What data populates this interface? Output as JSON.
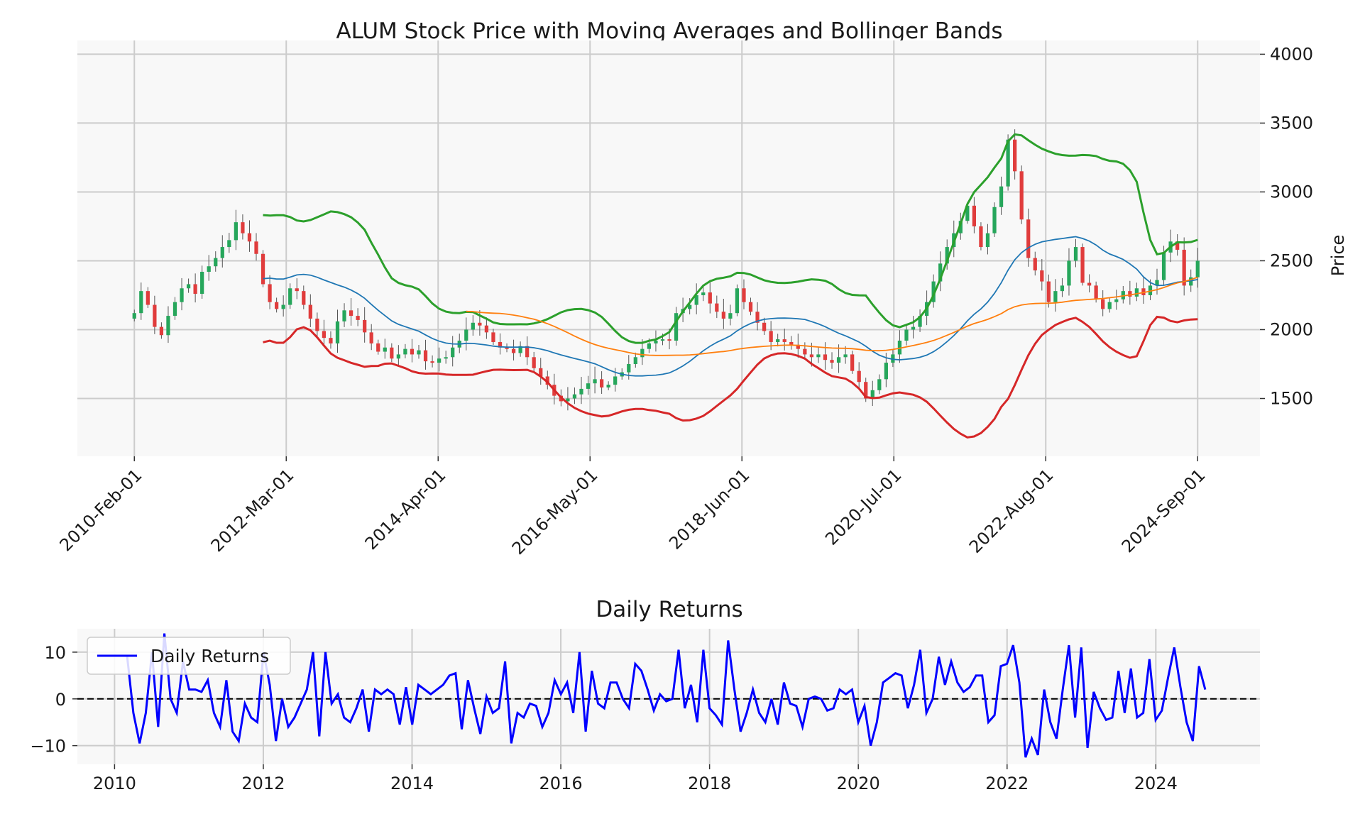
{
  "chart_data": [
    {
      "type": "candlestick",
      "title": "ALUM Stock Price with Moving Averages and Bollinger Bands",
      "ylabel": "Price",
      "xlabel": "",
      "xlim": [
        2009.35,
        2024.92
      ],
      "ylim": [
        1080,
        4100
      ],
      "yticks": [
        1500,
        2000,
        2500,
        3000,
        3500,
        4000
      ],
      "xticks": [
        {
          "x": 2010.1,
          "label": "2010-Feb-01"
        },
        {
          "x": 2012.1,
          "label": "2012-Mar-01"
        },
        {
          "x": 2014.1,
          "label": "2014-Apr-01"
        },
        {
          "x": 2016.1,
          "label": "2016-May-01"
        },
        {
          "x": 2018.1,
          "label": "2018-Jun-01"
        },
        {
          "x": 2020.1,
          "label": "2020-Jul-01"
        },
        {
          "x": 2022.1,
          "label": "2022-Aug-01"
        },
        {
          "x": 2024.1,
          "label": "2024-Sep-01"
        }
      ],
      "grid": true,
      "y_axis_side": "right",
      "colors": {
        "up": "#26a65b",
        "down": "#e03c3c",
        "wick": "#555555",
        "ma_short": "#1f77b4",
        "ma_long": "#ff7f0e",
        "bb_upper": "#2ca02c",
        "bb_lower": "#d62728",
        "panel_bg": "#f8f8f8",
        "grid": "#cccccc"
      },
      "candles_close": [
        2120,
        2280,
        2180,
        2020,
        1960,
        2100,
        2200,
        2300,
        2330,
        2260,
        2420,
        2460,
        2520,
        2600,
        2650,
        2780,
        2700,
        2640,
        2550,
        2330,
        2200,
        2150,
        2180,
        2300,
        2280,
        2180,
        2080,
        1990,
        1940,
        1900,
        2060,
        2140,
        2100,
        2070,
        1980,
        1900,
        1840,
        1870,
        1790,
        1820,
        1860,
        1820,
        1850,
        1770,
        1760,
        1790,
        1800,
        1870,
        1920,
        2000,
        2050,
        2030,
        1980,
        1910,
        1870,
        1860,
        1830,
        1880,
        1800,
        1720,
        1660,
        1600,
        1520,
        1480,
        1500,
        1530,
        1570,
        1610,
        1640,
        1580,
        1600,
        1660,
        1690,
        1750,
        1800,
        1860,
        1900,
        1920,
        1930,
        1920,
        2120,
        2150,
        2180,
        2250,
        2270,
        2190,
        2130,
        2080,
        2120,
        2300,
        2200,
        2130,
        2050,
        1990,
        1910,
        1930,
        1910,
        1890,
        1860,
        1820,
        1800,
        1820,
        1780,
        1760,
        1800,
        1820,
        1700,
        1620,
        1500,
        1560,
        1640,
        1760,
        1820,
        1920,
        2000,
        2020,
        2100,
        2200,
        2350,
        2480,
        2600,
        2700,
        2790,
        2900,
        2750,
        2600,
        2700,
        2890,
        3040,
        3380,
        3150,
        2800,
        2520,
        2430,
        2350,
        2200,
        2280,
        2320,
        2500,
        2600,
        2340,
        2320,
        2220,
        2150,
        2200,
        2220,
        2280,
        2240,
        2300,
        2250,
        2320,
        2360,
        2560,
        2640,
        2580,
        2320,
        2380,
        2500
      ]
    },
    {
      "type": "line",
      "title": "Daily Returns",
      "xlabel": "",
      "ylabel": "",
      "xlim": [
        2009.5,
        2025.4
      ],
      "ylim": [
        -14,
        15
      ],
      "yticks": [
        -10,
        0,
        10
      ],
      "xticks": [
        2010,
        2012,
        2014,
        2016,
        2018,
        2020,
        2022,
        2024
      ],
      "grid": true,
      "reference_line": 0,
      "legend": {
        "position": "top-left"
      },
      "series": [
        {
          "name": "Daily Returns",
          "color": "#0000ff",
          "x_start": 2010.17,
          "x_step": 0.0833,
          "values": [
            9,
            -3,
            -9.5,
            -3,
            10,
            -6,
            14,
            0,
            -3,
            8,
            2,
            2,
            1.5,
            4,
            -3,
            -6,
            4,
            -7,
            -9,
            -1,
            -4,
            -5,
            10,
            3,
            -9,
            0,
            -6,
            -4,
            -1,
            2,
            10,
            -8,
            10,
            -1,
            1,
            -4,
            -5,
            -2,
            2,
            -7,
            2,
            1,
            2,
            1,
            -5.5,
            2.5,
            -5.5,
            3,
            2,
            1,
            2,
            3,
            5,
            5.5,
            -6.5,
            4,
            -2,
            -7.5,
            0.5,
            -3,
            -2,
            8,
            -9.5,
            -3,
            -4,
            -1,
            -1.5,
            -6,
            -3,
            4,
            1,
            3.5,
            -3,
            10,
            -7,
            6,
            -1,
            -2,
            3.5,
            3.5,
            0,
            -2,
            7.5,
            6,
            2,
            -2.5,
            1,
            -0.5,
            0,
            10.5,
            -2,
            3,
            -5,
            10.5,
            -2,
            -3.5,
            -5.5,
            12.5,
            2,
            -7,
            -3,
            2,
            -3,
            -5,
            0,
            -5.5,
            3.5,
            -1,
            -1.5,
            -6,
            0,
            0.5,
            0,
            -2.5,
            -2,
            2,
            1,
            2,
            -5,
            -1.5,
            -10,
            -5,
            3.5,
            4.5,
            5.5,
            5,
            -2,
            3,
            10.5,
            -3,
            0,
            9,
            3,
            8,
            3.5,
            1.5,
            2.5,
            5,
            5,
            -5,
            -3.5,
            7,
            7.5,
            11.5,
            3.5,
            -12.5,
            -8.5,
            -12,
            2,
            -5,
            -8.5,
            2,
            11.5,
            -4,
            11,
            -10.5,
            1.5,
            -2,
            -4.5,
            -4,
            6,
            -3,
            6.5,
            -4,
            -3,
            8.5,
            -4.5,
            -2.5,
            4.5,
            11,
            2.5,
            -5,
            -9,
            7,
            2
          ]
        }
      ]
    }
  ]
}
